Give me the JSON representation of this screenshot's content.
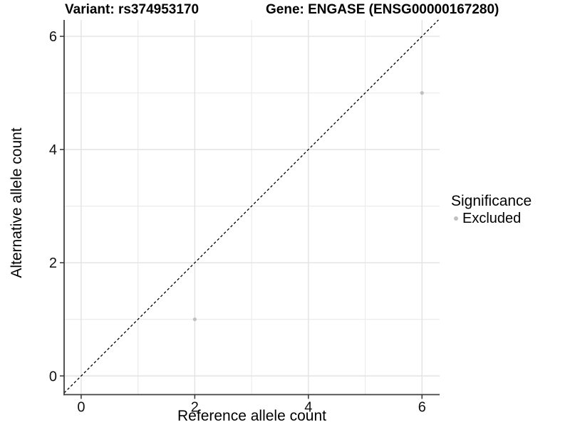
{
  "titles": {
    "variant": "Variant: rs374953170",
    "gene": "Gene: ENGASE (ENSG00000167280)"
  },
  "legend": {
    "title": "Significance",
    "items": [
      {
        "label": "Excluded",
        "color": "#c0c0c0"
      }
    ]
  },
  "chart_data": {
    "type": "scatter",
    "title": "Variant: rs374953170   Gene: ENGASE (ENSG00000167280)",
    "xlabel": "Reference allele count",
    "ylabel": "Alternative allele count",
    "xlim": [
      -0.3,
      6.31
    ],
    "ylim": [
      -0.33,
      6.29
    ],
    "x_ticks": [
      0,
      2,
      4,
      6
    ],
    "y_ticks": [
      0,
      2,
      4,
      6
    ],
    "x_minor_ticks": [
      1,
      3,
      5
    ],
    "y_minor_ticks": [
      1,
      3,
      5
    ],
    "grid": "major and minor gridlines, light gray on white panel",
    "legend_position": "right",
    "reference_line": {
      "kind": "identity y=x",
      "style": "dashed",
      "color": "#000000"
    },
    "series": [
      {
        "name": "Excluded",
        "color": "#c0c0c0",
        "points": [
          [
            2,
            1
          ],
          [
            6,
            5
          ]
        ]
      }
    ],
    "colors": {
      "point": "#c0c0c0",
      "grid_major": "#e3e3e3",
      "grid_minor": "#ececec",
      "axis_line": "#404040",
      "tick": "#333333",
      "text": "#111111"
    }
  }
}
